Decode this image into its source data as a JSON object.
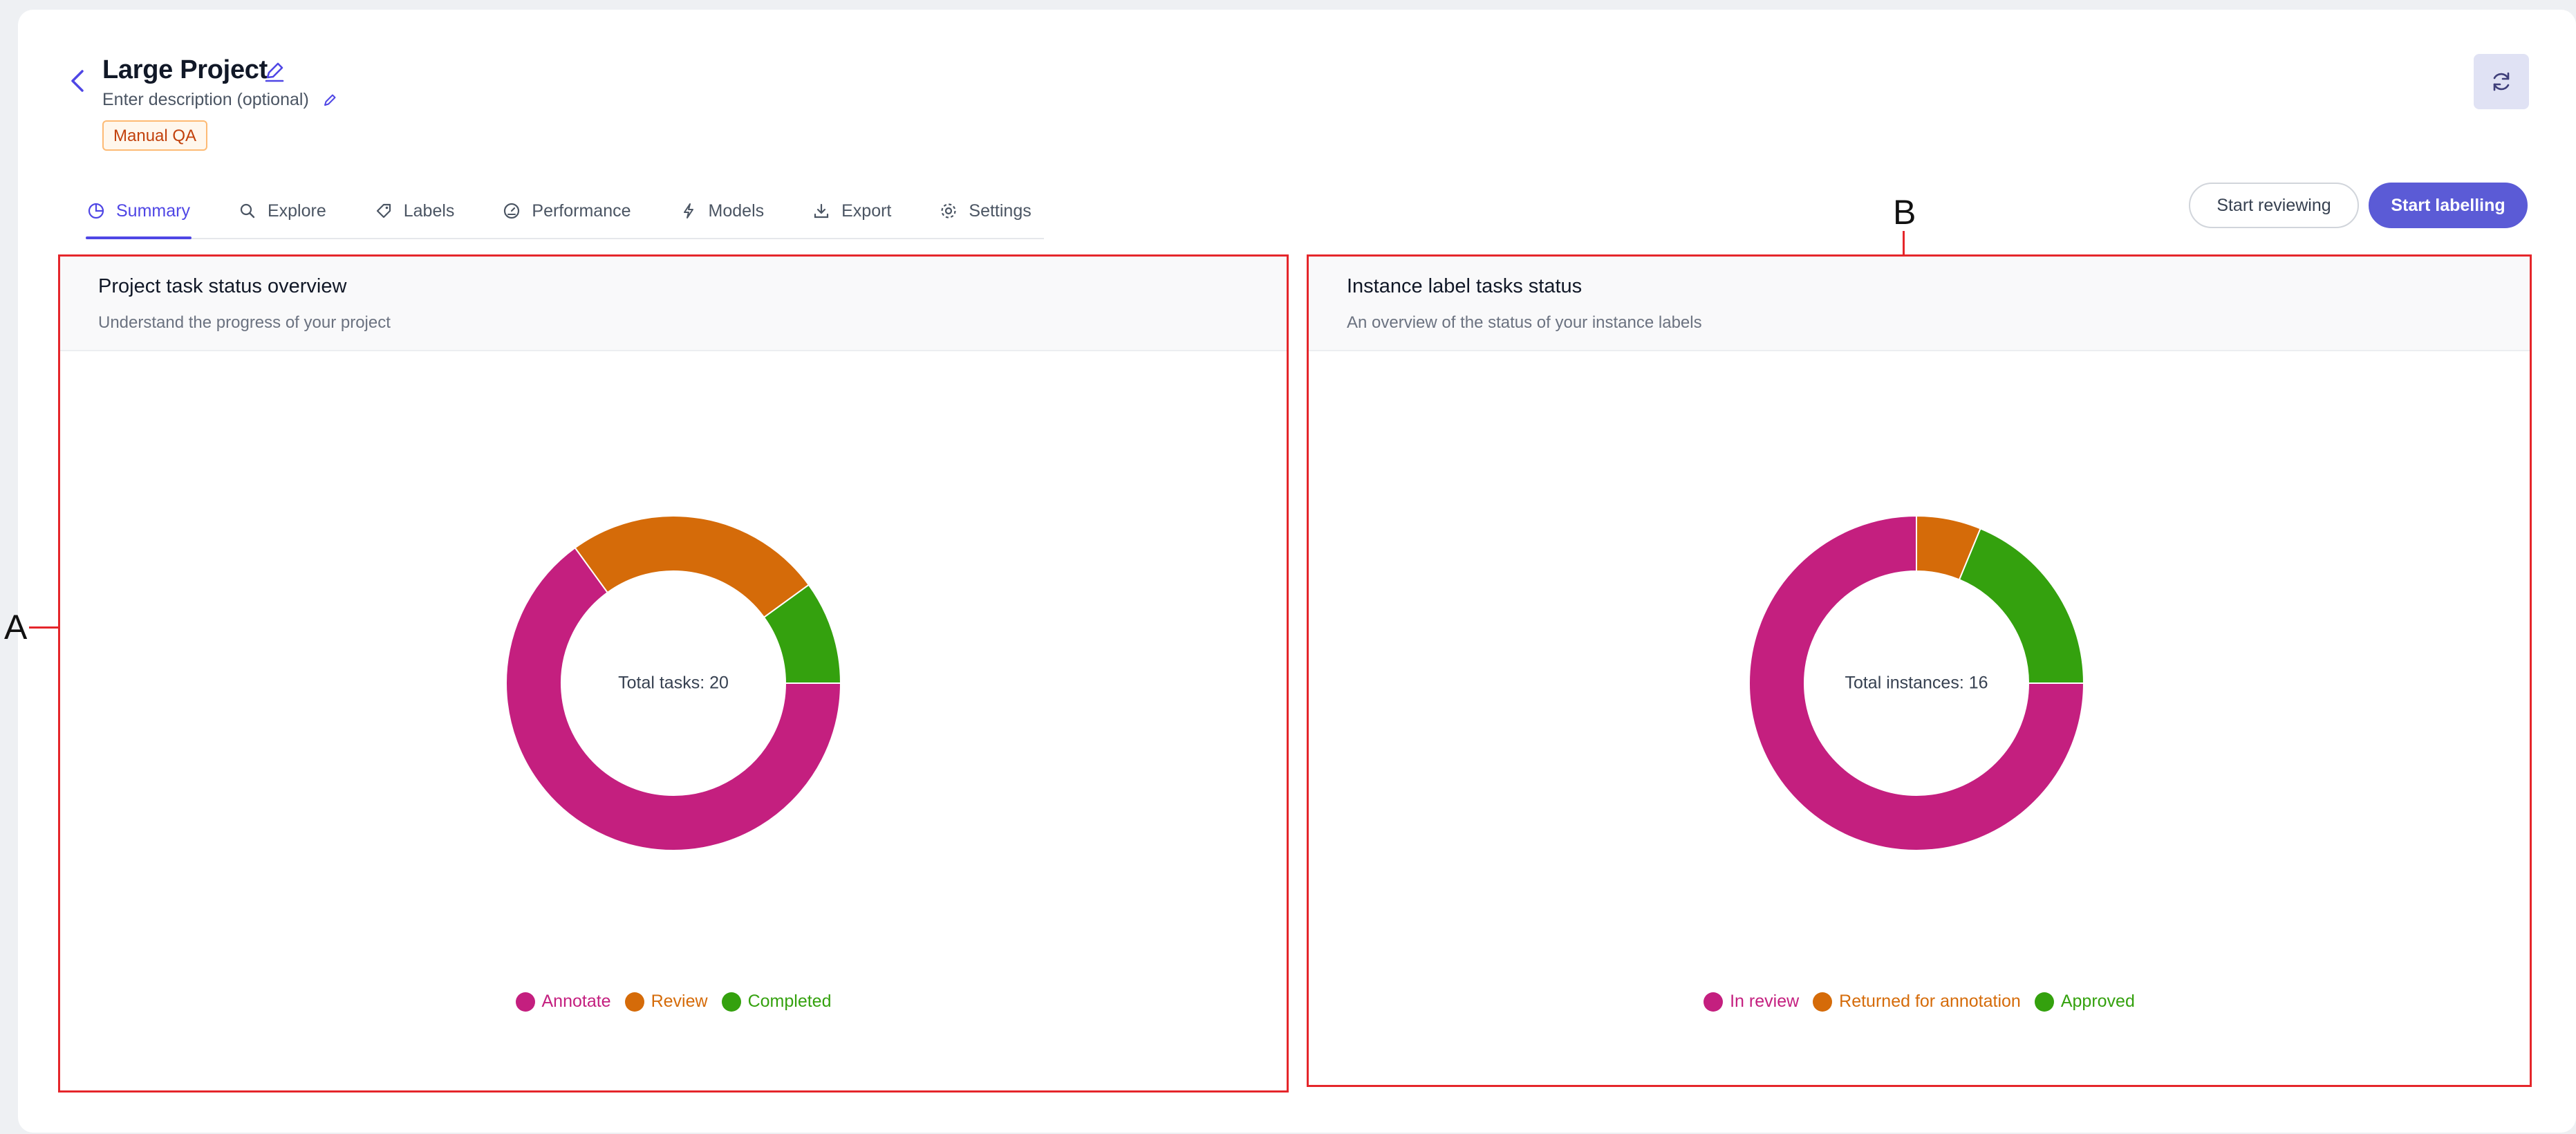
{
  "header": {
    "title": "Large Project",
    "description": "Enter description (optional)",
    "badge": "Manual QA"
  },
  "tabs": [
    {
      "label": "Summary",
      "icon": "pie-chart-icon",
      "active": true
    },
    {
      "label": "Explore",
      "icon": "search-icon"
    },
    {
      "label": "Labels",
      "icon": "tag-icon"
    },
    {
      "label": "Performance",
      "icon": "gauge-icon"
    },
    {
      "label": "Models",
      "icon": "lightning-icon"
    },
    {
      "label": "Export",
      "icon": "download-icon"
    },
    {
      "label": "Settings",
      "icon": "gear-icon"
    }
  ],
  "actions": {
    "start_reviewing": "Start reviewing",
    "start_labelling": "Start labelling"
  },
  "panels": {
    "task_status": {
      "title": "Project task status overview",
      "subtitle": "Understand the progress of your project",
      "center_text": "Total tasks: 20"
    },
    "instance_status": {
      "title": "Instance label tasks status",
      "subtitle": "An overview of the status of your instance labels",
      "center_text": "Total instances: 16"
    }
  },
  "annotations": {
    "a": "A",
    "b": "B",
    "color": "#e5262b"
  },
  "colors": {
    "accent": "#5b5bd6",
    "magenta": "#c41f7f",
    "orange": "#d56b09",
    "green": "#34a10e"
  },
  "chart_data": [
    {
      "type": "pie",
      "donut": true,
      "categories": [
        "Annotate",
        "Review",
        "Completed"
      ],
      "values": [
        13,
        5,
        2
      ],
      "colors": [
        "#c41f7f",
        "#d56b09",
        "#34a10e"
      ],
      "legend": "bottom"
    },
    {
      "type": "pie",
      "donut": true,
      "categories": [
        "In review",
        "Returned for annotation",
        "Approved"
      ],
      "values": [
        12,
        1,
        3
      ],
      "colors": [
        "#c41f7f",
        "#d56b09",
        "#34a10e"
      ],
      "legend": "bottom"
    }
  ]
}
